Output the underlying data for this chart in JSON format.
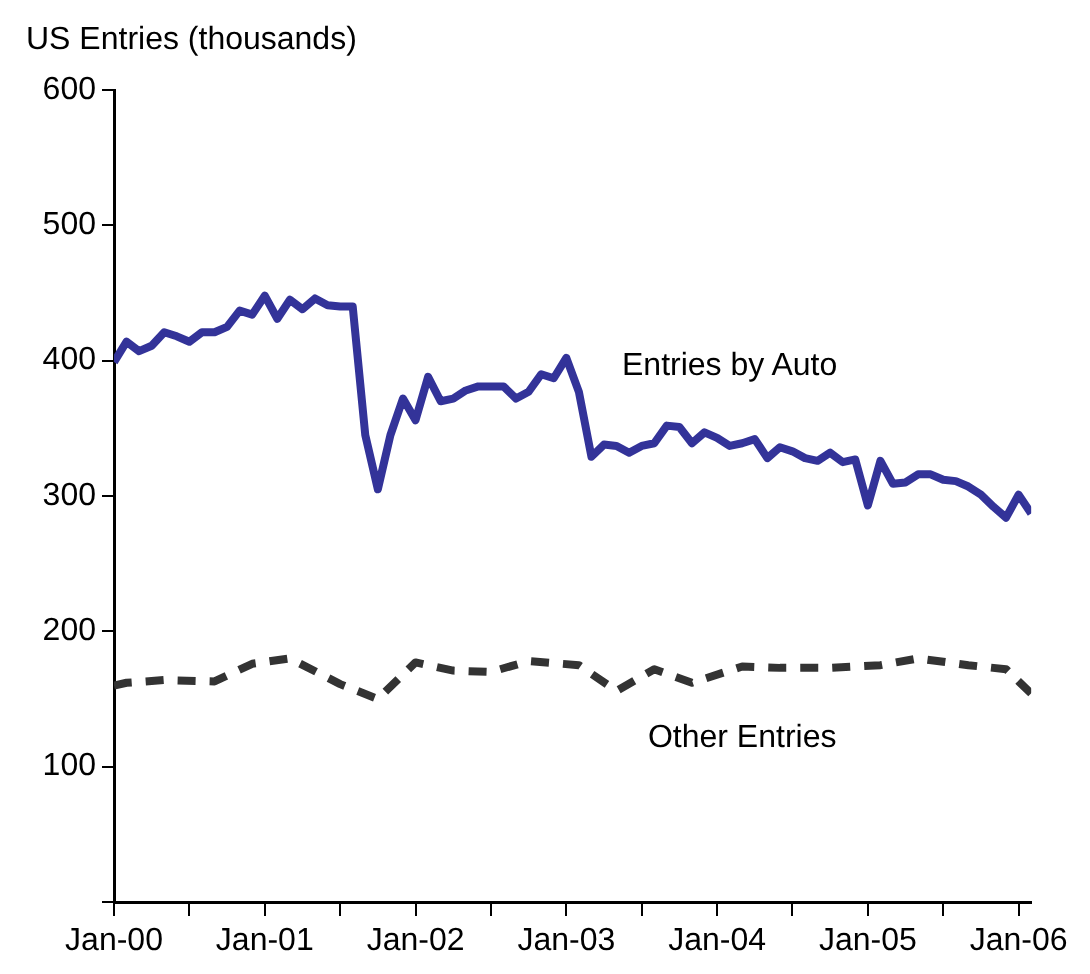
{
  "chart_data": {
    "type": "line",
    "ylabel": "US Entries (thousands)",
    "x": [
      "2000-01",
      "2000-02",
      "2000-03",
      "2000-04",
      "2000-05",
      "2000-06",
      "2000-07",
      "2000-08",
      "2000-09",
      "2000-10",
      "2000-11",
      "2000-12",
      "2001-01",
      "2001-02",
      "2001-03",
      "2001-04",
      "2001-05",
      "2001-06",
      "2001-07",
      "2001-08",
      "2001-09",
      "2001-10",
      "2001-11",
      "2001-12",
      "2002-01",
      "2002-02",
      "2002-03",
      "2002-04",
      "2002-05",
      "2002-06",
      "2002-07",
      "2002-08",
      "2002-09",
      "2002-10",
      "2002-11",
      "2002-12",
      "2003-01",
      "2003-02",
      "2003-03",
      "2003-04",
      "2003-05",
      "2003-06",
      "2003-07",
      "2003-08",
      "2003-09",
      "2003-10",
      "2003-11",
      "2003-12",
      "2004-01",
      "2004-02",
      "2004-03",
      "2004-04",
      "2004-05",
      "2004-06",
      "2004-07",
      "2004-08",
      "2004-09",
      "2004-10",
      "2004-11",
      "2004-12",
      "2005-01",
      "2005-02",
      "2005-03",
      "2005-04",
      "2005-05",
      "2005-06",
      "2005-07",
      "2005-08",
      "2005-09",
      "2005-10",
      "2005-11",
      "2005-12",
      "2006-01",
      "2006-02"
    ],
    "series": [
      {
        "name": "Entries by Auto",
        "color": "#333399",
        "line_style": "solid",
        "values": [
          399,
          414,
          407,
          411,
          421,
          418,
          414,
          421,
          421,
          425,
          437,
          434,
          448,
          431,
          445,
          438,
          446,
          441,
          440,
          440,
          345,
          305,
          345,
          372,
          356,
          388,
          370,
          372,
          378,
          381,
          381,
          381,
          372,
          377,
          390,
          387,
          402,
          377,
          329,
          338,
          337,
          332,
          337,
          339,
          352,
          351,
          339,
          347,
          343,
          337,
          339,
          342,
          328,
          336,
          333,
          328,
          326,
          332,
          325,
          327,
          293,
          326,
          309,
          310,
          316,
          316,
          312,
          311,
          307,
          301,
          292,
          284,
          301,
          287
        ]
      },
      {
        "name": "Other Entries",
        "color": "#333333",
        "line_style": "dashed",
        "x": [
          "2000-01",
          "2000-02",
          "2000-05",
          "2000-09",
          "2000-12",
          "2001-03",
          "2001-07",
          "2001-10",
          "2002-01",
          "2002-04",
          "2002-07",
          "2002-10",
          "2003-02",
          "2003-05",
          "2003-08",
          "2003-11",
          "2004-03",
          "2004-06",
          "2004-10",
          "2005-02",
          "2005-05",
          "2005-09",
          "2005-12",
          "2006-02"
        ],
        "values": [
          160,
          162,
          164,
          163,
          176,
          180,
          161,
          150,
          177,
          171,
          170,
          178,
          175,
          156,
          172,
          162,
          174,
          173,
          173,
          175,
          180,
          175,
          172,
          154
        ]
      }
    ],
    "xlim": [
      "2000-01",
      "2006-02"
    ],
    "xticks": [
      {
        "value": "2000-01",
        "label": "Jan-00"
      },
      {
        "value": "2000-07",
        "label": null
      },
      {
        "value": "2001-01",
        "label": "Jan-01"
      },
      {
        "value": "2001-07",
        "label": null
      },
      {
        "value": "2002-01",
        "label": "Jan-02"
      },
      {
        "value": "2002-07",
        "label": null
      },
      {
        "value": "2003-01",
        "label": "Jan-03"
      },
      {
        "value": "2003-07",
        "label": null
      },
      {
        "value": "2004-01",
        "label": "Jan-04"
      },
      {
        "value": "2004-07",
        "label": null
      },
      {
        "value": "2005-01",
        "label": "Jan-05"
      },
      {
        "value": "2005-07",
        "label": null
      },
      {
        "value": "2006-01",
        "label": "Jan-06"
      }
    ],
    "ylim": [
      0,
      600
    ],
    "yticks": [
      {
        "value": 0,
        "label": null
      },
      100,
      200,
      300,
      400,
      500,
      600
    ],
    "grid": false,
    "legend": false,
    "marker": "none"
  }
}
